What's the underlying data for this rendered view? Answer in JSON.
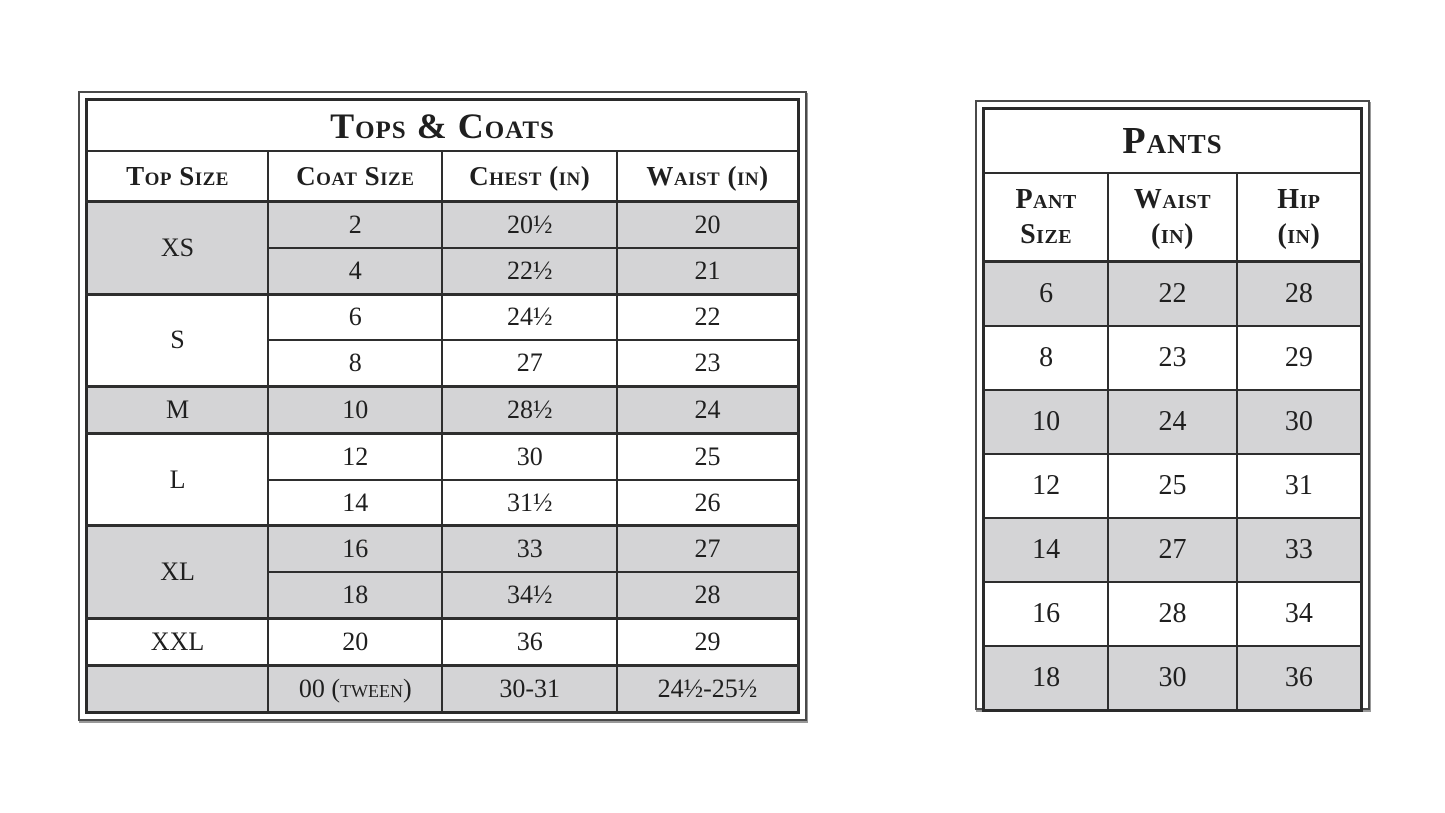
{
  "page": {
    "background_color": "#ffffff",
    "text_color": "#1f1f1f",
    "shade_color": "#d4d4d6",
    "border_color": "#2e2e2e"
  },
  "tops_coats_table": {
    "title": "Tops & Coats",
    "columns": [
      "Top Size",
      "Coat Size",
      "Chest (in)",
      "Waist (in)"
    ],
    "groups": [
      {
        "size": "XS",
        "shaded": true,
        "rows": [
          [
            "2",
            "20½",
            "20"
          ],
          [
            "4",
            "22½",
            "21"
          ]
        ]
      },
      {
        "size": "S",
        "shaded": false,
        "rows": [
          [
            "6",
            "24½",
            "22"
          ],
          [
            "8",
            "27",
            "23"
          ]
        ]
      },
      {
        "size": "M",
        "shaded": true,
        "rows": [
          [
            "10",
            "28½",
            "24"
          ]
        ]
      },
      {
        "size": "L",
        "shaded": false,
        "rows": [
          [
            "12",
            "30",
            "25"
          ],
          [
            "14",
            "31½",
            "26"
          ]
        ]
      },
      {
        "size": "XL",
        "shaded": true,
        "rows": [
          [
            "16",
            "33",
            "27"
          ],
          [
            "18",
            "34½",
            "28"
          ]
        ]
      },
      {
        "size": "XXL",
        "shaded": false,
        "rows": [
          [
            "20",
            "36",
            "29"
          ]
        ]
      },
      {
        "size": "",
        "shaded": true,
        "rows": [
          [
            "00 (tween)",
            "30-31",
            "24½-25½"
          ]
        ]
      }
    ]
  },
  "pants_table": {
    "title": "Pants",
    "columns": [
      "Pant\nSize",
      "Waist\n(in)",
      "Hip\n(in)"
    ],
    "rows": [
      {
        "shaded": true,
        "cells": [
          "6",
          "22",
          "28"
        ]
      },
      {
        "shaded": false,
        "cells": [
          "8",
          "23",
          "29"
        ]
      },
      {
        "shaded": true,
        "cells": [
          "10",
          "24",
          "30"
        ]
      },
      {
        "shaded": false,
        "cells": [
          "12",
          "25",
          "31"
        ]
      },
      {
        "shaded": true,
        "cells": [
          "14",
          "27",
          "33"
        ]
      },
      {
        "shaded": false,
        "cells": [
          "16",
          "28",
          "34"
        ]
      },
      {
        "shaded": true,
        "cells": [
          "18",
          "30",
          "36"
        ]
      }
    ]
  }
}
